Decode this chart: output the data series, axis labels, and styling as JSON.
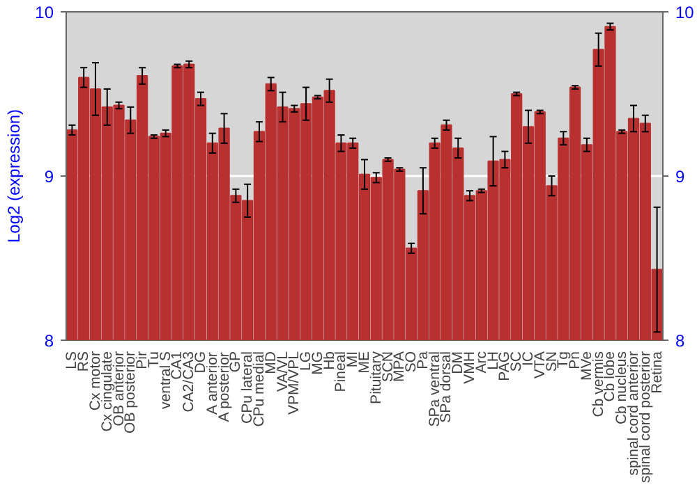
{
  "chart_data": {
    "type": "bar",
    "ylabel": "Log2 (expression)",
    "categories": [
      "LS",
      "RS",
      "Cx motor",
      "Cx cingulate",
      "OB anterior",
      "OB posterior",
      "Pir",
      "Tu",
      "ventral S",
      "CA1",
      "CA2/CA3",
      "DG",
      "A anterior",
      "A posterior",
      "GP",
      "CPu lateral",
      "CPu medial",
      "MD",
      "VA/VL",
      "VPM/VPL",
      "LG",
      "MG",
      "Hb",
      "Pineal",
      "MI",
      "ME",
      "Pituitary",
      "SCN",
      "MPA",
      "SO",
      "Pa",
      "SPa ventral",
      "SPa dorsal",
      "DM",
      "VMH",
      "Arc",
      "LH",
      "PAG",
      "SC",
      "IC",
      "VTA",
      "SN",
      "Tg",
      "Pn",
      "MVe",
      "Cb vermis",
      "Cb lobe",
      "Cb nucleus",
      "spinal cord anterior",
      "spinal cord posterior",
      "Retina"
    ],
    "values": [
      9.28,
      9.6,
      9.53,
      9.42,
      9.43,
      9.34,
      9.61,
      9.24,
      9.26,
      9.67,
      9.68,
      9.47,
      9.2,
      9.29,
      8.88,
      8.85,
      9.27,
      9.56,
      9.42,
      9.41,
      9.44,
      9.48,
      9.52,
      9.2,
      9.2,
      9.01,
      8.99,
      9.1,
      9.04,
      8.56,
      8.91,
      9.2,
      9.31,
      9.17,
      8.88,
      8.91,
      9.09,
      9.1,
      9.5,
      9.3,
      9.39,
      8.94,
      9.23,
      9.54,
      9.19,
      9.77,
      9.91,
      9.27,
      9.35,
      9.32,
      8.43
    ],
    "errors": [
      0.03,
      0.06,
      0.16,
      0.11,
      0.02,
      0.08,
      0.05,
      0.01,
      0.02,
      0.01,
      0.02,
      0.04,
      0.06,
      0.09,
      0.04,
      0.1,
      0.06,
      0.04,
      0.09,
      0.02,
      0.1,
      0.01,
      0.07,
      0.05,
      0.03,
      0.09,
      0.03,
      0.01,
      0.01,
      0.03,
      0.14,
      0.03,
      0.03,
      0.06,
      0.03,
      0.01,
      0.15,
      0.05,
      0.01,
      0.1,
      0.01,
      0.06,
      0.04,
      0.01,
      0.04,
      0.1,
      0.02,
      0.01,
      0.08,
      0.05,
      0.38
    ],
    "color": "#b83030",
    "ylim": [
      8,
      10
    ],
    "yticks": [
      8,
      9,
      10
    ],
    "y2lim": [
      8,
      10
    ],
    "y2ticks": [
      8,
      9,
      10
    ],
    "grid": "y"
  }
}
